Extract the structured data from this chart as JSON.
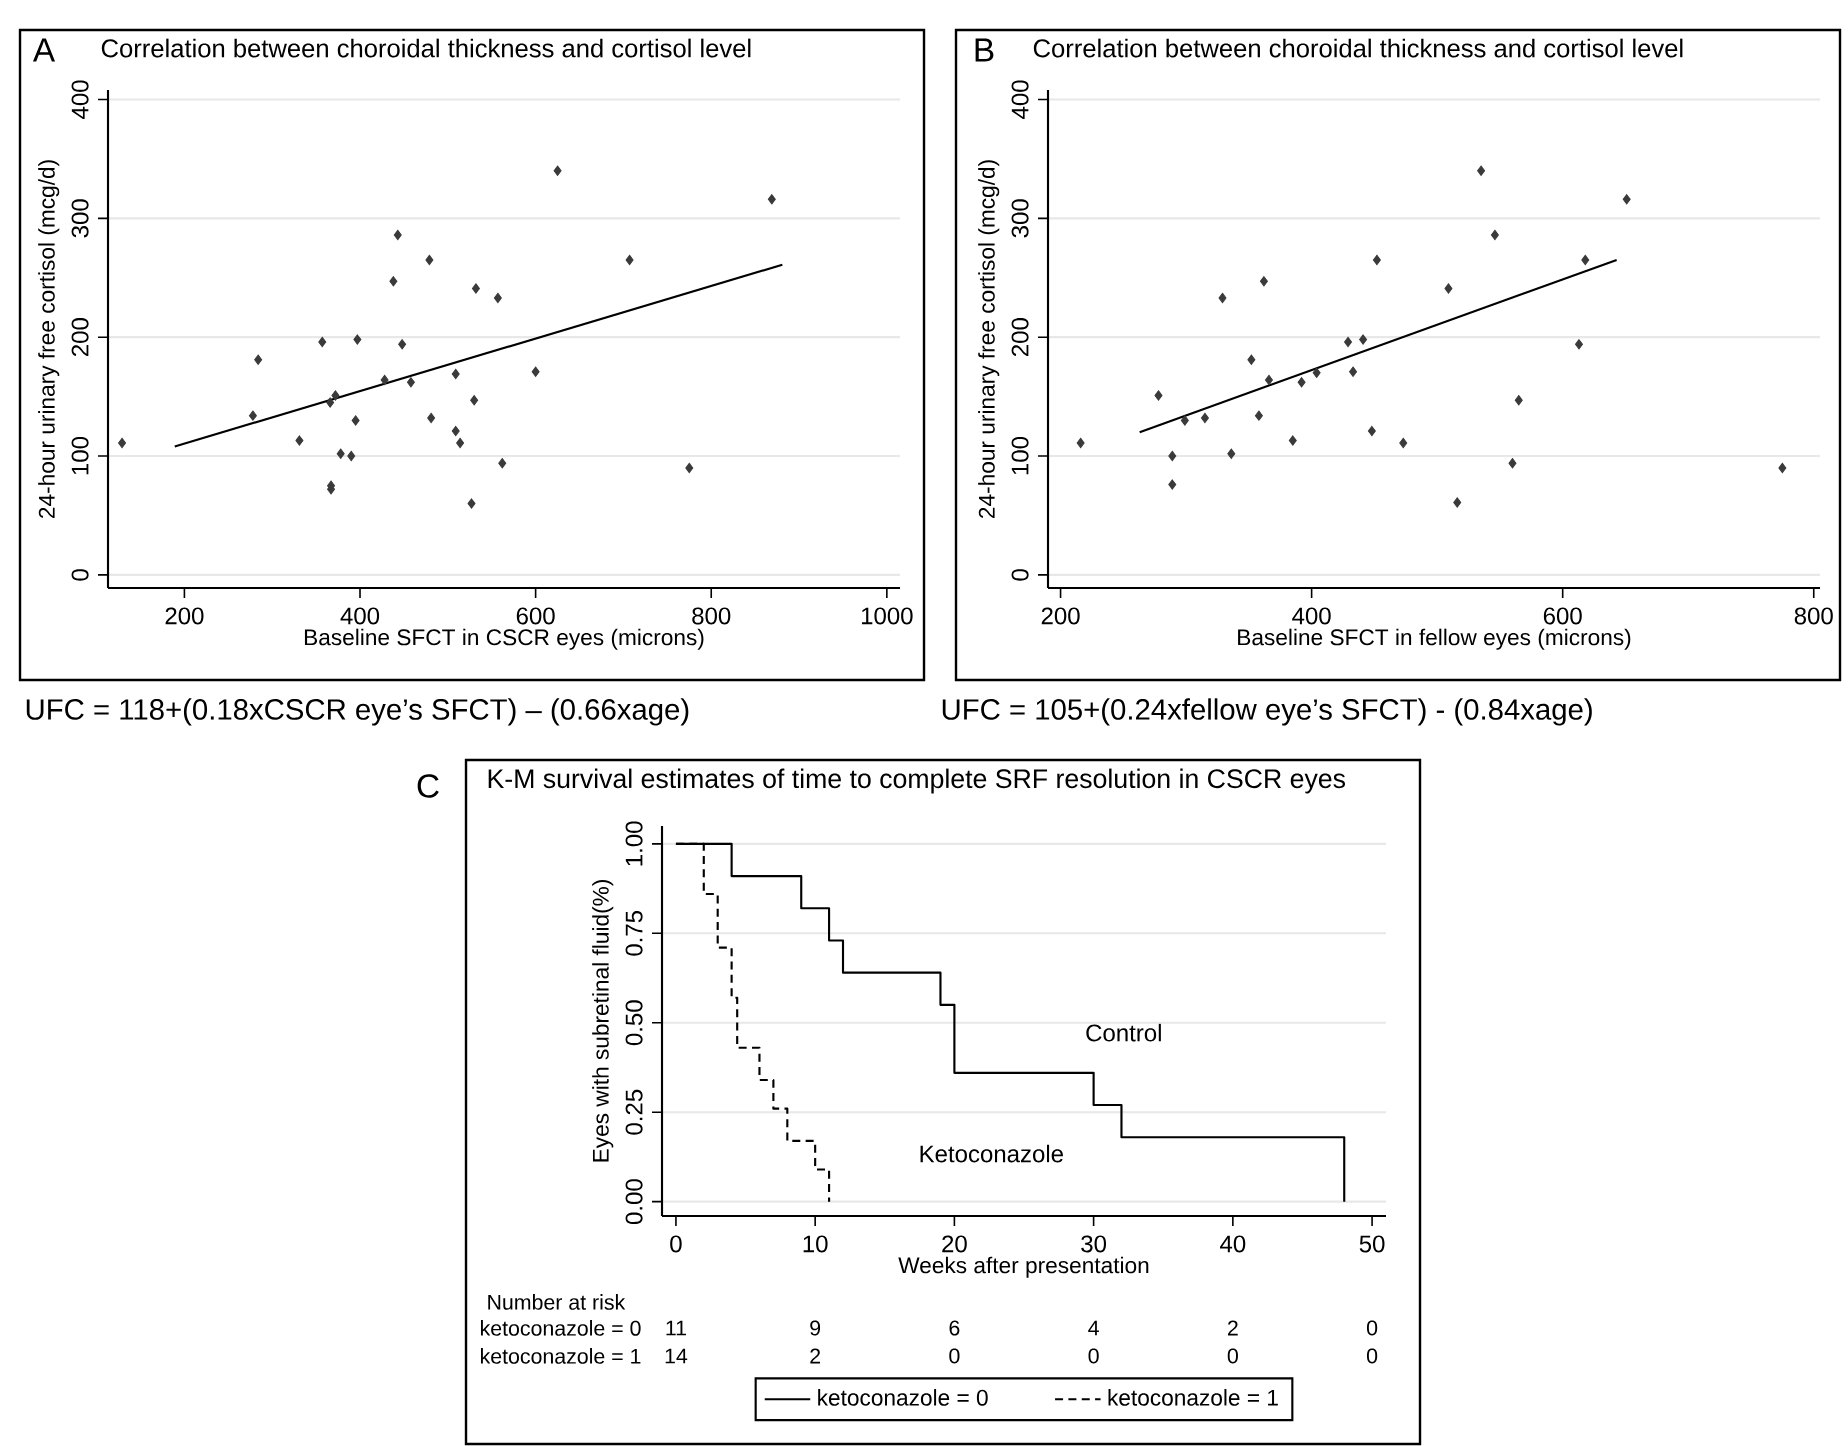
{
  "chart_data": [
    {
      "type": "scatter",
      "title": "Correlation between choroidal thickness and cortisol level",
      "xlabel": "Baseline SFCT in CSCR eyes (microns)",
      "ylabel": "24-hour urinary free cortisol (mcg/d)",
      "xlim": [
        113,
        1015
      ],
      "ylim": [
        -11,
        408
      ],
      "xticks": [
        200,
        400,
        600,
        800,
        1000
      ],
      "yticks": [
        0,
        100,
        200,
        300,
        400
      ],
      "grid": "y",
      "annotations": [
        "A",
        "UFC = 118+(0.18xCSCR eye’s SFCT) – (0.66xage)"
      ],
      "series": [
        {
          "type": "scatter",
          "color": "#3a3a3a",
          "marker": "diamond",
          "x": [
            129,
            278,
            284,
            331,
            357,
            366,
            372,
            367,
            367,
            378,
            390,
            395,
            397,
            428,
            438,
            443,
            448,
            458,
            479,
            481,
            509,
            509,
            514,
            530,
            527,
            532,
            557,
            562,
            600,
            625,
            707,
            775,
            869
          ],
          "values": [
            111,
            134,
            181,
            113,
            196,
            145,
            151,
            75,
            72,
            102,
            100,
            130,
            198,
            164,
            247,
            286,
            194,
            162,
            265,
            132,
            169,
            121,
            111,
            147,
            60,
            241,
            233,
            94,
            171,
            340,
            265,
            90,
            316
          ]
        },
        {
          "type": "line",
          "color": "#000000",
          "x": [
            189,
            881
          ],
          "values": [
            108,
            261
          ]
        }
      ]
    },
    {
      "type": "scatter",
      "title": "Correlation between choroidal thickness and cortisol level",
      "xlabel": "Baseline SFCT in fellow eyes (microns)",
      "ylabel": "24-hour urinary free cortisol (mcg/d)",
      "xlim": [
        190,
        805
      ],
      "ylim": [
        -11,
        408
      ],
      "xticks": [
        200,
        400,
        600,
        800
      ],
      "yticks": [
        0,
        100,
        200,
        300,
        400
      ],
      "grid": "y",
      "annotations": [
        "B",
        "UFC = 105+(0.24xfellow eye’s SFCT) - (0.84xage)"
      ],
      "series": [
        {
          "type": "scatter",
          "color": "#3a3a3a",
          "marker": "diamond",
          "x": [
            216,
            278,
            289,
            289,
            299,
            315,
            329,
            336,
            352,
            358,
            362,
            366,
            385,
            392,
            404,
            429,
            433,
            441,
            448,
            452,
            473,
            509,
            516,
            535,
            546,
            560,
            565,
            613,
            618,
            651,
            775
          ],
          "values": [
            111,
            151,
            100,
            76,
            130,
            132,
            233,
            102,
            181,
            134,
            247,
            164,
            113,
            162,
            170,
            196,
            171,
            198,
            121,
            265,
            111,
            241,
            61,
            340,
            286,
            94,
            147,
            194,
            265,
            316,
            90
          ]
        },
        {
          "type": "line",
          "color": "#000000",
          "x": [
            263,
            643
          ],
          "values": [
            120,
            265
          ]
        }
      ]
    },
    {
      "type": "step",
      "title": "K-M survival estimates of time to complete SRF resolution in CSCR eyes",
      "xlabel": "Weeks after presentation",
      "ylabel": "Eyes with subretinal fluid(%)",
      "xlim": [
        -1,
        51
      ],
      "ylim": [
        -0.04,
        1.05
      ],
      "xticks": [
        0,
        10,
        20,
        30,
        40,
        50
      ],
      "yticks": [
        {
          "value": 0,
          "label": "0.00"
        },
        {
          "value": 0.25,
          "label": "0.25"
        },
        {
          "value": 0.5,
          "label": "0.50"
        },
        {
          "value": 0.75,
          "label": "0.75"
        },
        {
          "value": 1,
          "label": "1.00"
        }
      ],
      "grid": "y",
      "legend": "bottom",
      "annotations": [
        "C",
        "Number at risk",
        "ketoconazole = 0",
        "11",
        "9",
        "6",
        "4",
        "2",
        "0",
        "ketoconazole = 1",
        "14",
        "2",
        "0",
        "0",
        "0",
        "0",
        "Control",
        "Ketoconazole"
      ],
      "series": [
        {
          "name": "ketoconazole = 0",
          "color": "#000000",
          "line_style": "solid",
          "x": [
            0,
            4,
            9,
            11,
            12,
            19,
            20,
            30,
            32,
            48
          ],
          "values": [
            1,
            0.91,
            0.82,
            0.73,
            0.64,
            0.55,
            0.36,
            0.27,
            0.18,
            0
          ]
        },
        {
          "name": "ketoconazole = 1",
          "color": "#000000",
          "line_style": "dashed",
          "x": [
            0,
            2,
            3,
            4,
            4.4,
            6,
            7,
            8,
            10,
            11
          ],
          "values": [
            1,
            0.86,
            0.71,
            0.57,
            0.43,
            0.34,
            0.26,
            0.17,
            0.09,
            0
          ]
        }
      ]
    }
  ]
}
